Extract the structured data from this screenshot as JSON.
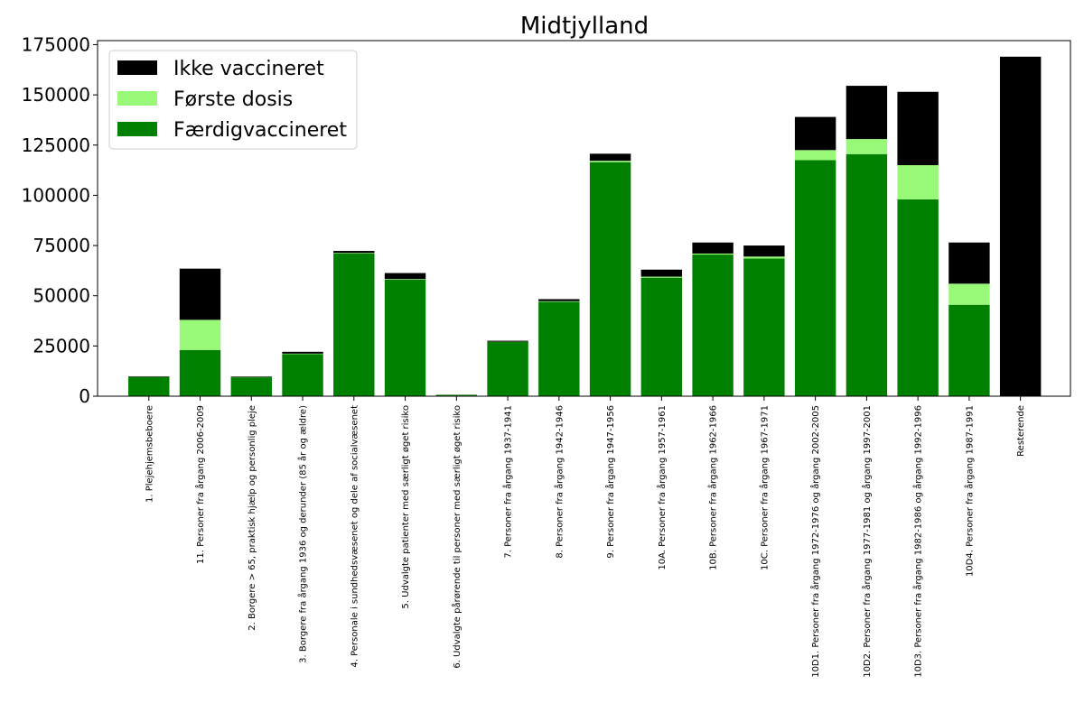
{
  "chart_data": {
    "type": "bar",
    "stacked": true,
    "title": "Midtjylland",
    "xlabel": "",
    "ylabel": "",
    "ylim": [
      0,
      177000
    ],
    "yticks": [
      0,
      25000,
      50000,
      75000,
      100000,
      125000,
      150000,
      175000
    ],
    "grid": false,
    "legend_position": "top-left",
    "categories": [
      "1. Plejehjemsbeboere",
      "11. Personer fra årgang 2006-2009",
      "2. Borgere > 65, praktisk hjælp og personlig pleje",
      "3. Borgere fra årgang 1936 og derunder (85 år og ældre)",
      "4. Personale i sundhedsvæsenet og dele af socialvæsenet",
      "5. Udvalgte patienter med særligt øget risiko",
      "6. Udvalgte pårørende til personer med særligt øget risiko",
      "7. Personer fra årgang 1937-1941",
      "8. Personer fra årgang 1942-1946",
      "9. Personer fra årgang 1947-1956",
      "10A. Personer fra årgang 1957-1961",
      "10B. Personer fra årgang 1962-1966",
      "10C. Personer fra årgang 1967-1971",
      "10D1. Personer fra årgang 1972-1976 og årgang 2002-2005",
      "10D2. Personer fra årgang 1977-1981 og årgang 1997-2001",
      "10D3. Personer fra årgang 1982-1986 og årgang 1992-1996",
      "10D4. Personer fra årgang 1987-1991",
      "Resterende"
    ],
    "series": [
      {
        "name": "Færdigvaccineret",
        "color": "#008000",
        "values": [
          9500,
          23000,
          9400,
          21000,
          71000,
          58000,
          600,
          27000,
          47000,
          116500,
          59000,
          70500,
          68500,
          117500,
          120500,
          98000,
          45500,
          0
        ]
      },
      {
        "name": "Første dosis",
        "color": "#98f878",
        "values": [
          100,
          15000,
          100,
          200,
          300,
          300,
          100,
          100,
          300,
          700,
          500,
          500,
          1000,
          5000,
          7500,
          17000,
          10500,
          0
        ]
      },
      {
        "name": "Ikke vaccineret",
        "color": "#000000",
        "values": [
          300,
          25500,
          300,
          900,
          1000,
          3000,
          100,
          500,
          1000,
          3500,
          3500,
          5500,
          5500,
          16500,
          26500,
          36500,
          20500,
          169000
        ]
      }
    ],
    "legend_order": [
      "Ikke vaccineret",
      "Første dosis",
      "Færdigvaccineret"
    ]
  }
}
